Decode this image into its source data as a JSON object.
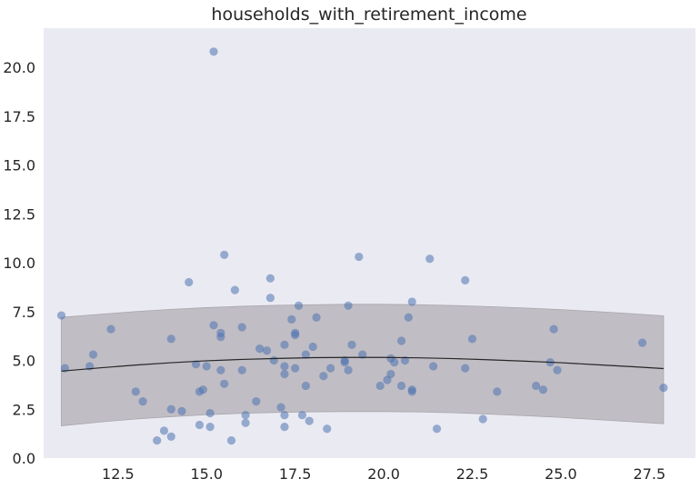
{
  "chart_data": {
    "type": "scatter",
    "title": "households_with_retirement_income",
    "xlabel": "",
    "ylabel": "",
    "xlim": [
      10.4,
      28.8
    ],
    "ylim": [
      0,
      22
    ],
    "x_ticks": [
      "12.5",
      "15.0",
      "17.5",
      "20.0",
      "22.5",
      "25.0",
      "27.5"
    ],
    "y_ticks": [
      "0.0",
      "2.5",
      "5.0",
      "7.5",
      "10.0",
      "12.5",
      "15.0",
      "17.5",
      "20.0"
    ],
    "grid": false,
    "background_color": "#eaeaf2",
    "point_color": "#4c72b0",
    "band_color": "#a9a5ab",
    "fit_line_color": "#262626",
    "points": [
      [
        10.9,
        7.3
      ],
      [
        11.0,
        4.6
      ],
      [
        11.7,
        4.7
      ],
      [
        11.8,
        5.3
      ],
      [
        12.3,
        6.6
      ],
      [
        13.0,
        3.4
      ],
      [
        13.2,
        2.9
      ],
      [
        13.6,
        0.9
      ],
      [
        13.8,
        1.4
      ],
      [
        14.0,
        1.1
      ],
      [
        14.0,
        2.5
      ],
      [
        14.0,
        6.1
      ],
      [
        14.3,
        2.4
      ],
      [
        14.5,
        9.0
      ],
      [
        14.7,
        4.8
      ],
      [
        14.8,
        3.4
      ],
      [
        14.8,
        1.7
      ],
      [
        14.9,
        3.5
      ],
      [
        15.0,
        4.7
      ],
      [
        15.1,
        1.6
      ],
      [
        15.1,
        2.3
      ],
      [
        15.2,
        6.8
      ],
      [
        15.2,
        20.8
      ],
      [
        15.4,
        6.4
      ],
      [
        15.4,
        6.2
      ],
      [
        15.4,
        4.5
      ],
      [
        15.5,
        10.4
      ],
      [
        15.5,
        3.8
      ],
      [
        15.7,
        0.9
      ],
      [
        15.8,
        8.6
      ],
      [
        16.0,
        4.5
      ],
      [
        16.0,
        6.7
      ],
      [
        16.1,
        2.2
      ],
      [
        16.1,
        1.8
      ],
      [
        16.4,
        2.9
      ],
      [
        16.5,
        5.6
      ],
      [
        16.7,
        5.5
      ],
      [
        16.8,
        9.2
      ],
      [
        16.8,
        8.2
      ],
      [
        16.9,
        5.0
      ],
      [
        17.1,
        2.6
      ],
      [
        17.2,
        5.8
      ],
      [
        17.2,
        4.7
      ],
      [
        17.2,
        4.3
      ],
      [
        17.2,
        2.2
      ],
      [
        17.2,
        1.6
      ],
      [
        17.4,
        7.1
      ],
      [
        17.5,
        6.4
      ],
      [
        17.5,
        6.3
      ],
      [
        17.5,
        4.6
      ],
      [
        17.6,
        7.8
      ],
      [
        17.7,
        2.2
      ],
      [
        17.8,
        5.3
      ],
      [
        17.8,
        3.7
      ],
      [
        17.9,
        1.9
      ],
      [
        18.0,
        5.7
      ],
      [
        18.1,
        7.2
      ],
      [
        18.3,
        4.2
      ],
      [
        18.4,
        1.5
      ],
      [
        18.5,
        4.6
      ],
      [
        18.9,
        5.0
      ],
      [
        18.9,
        4.9
      ],
      [
        19.0,
        7.8
      ],
      [
        19.0,
        4.5
      ],
      [
        19.1,
        5.8
      ],
      [
        19.3,
        10.3
      ],
      [
        19.4,
        5.3
      ],
      [
        19.9,
        3.7
      ],
      [
        20.1,
        4.0
      ],
      [
        20.2,
        4.3
      ],
      [
        20.2,
        5.1
      ],
      [
        20.3,
        4.9
      ],
      [
        20.5,
        6.0
      ],
      [
        20.5,
        3.7
      ],
      [
        20.6,
        5.0
      ],
      [
        20.7,
        7.2
      ],
      [
        20.8,
        8.0
      ],
      [
        20.8,
        3.5
      ],
      [
        20.8,
        3.4
      ],
      [
        21.3,
        10.2
      ],
      [
        21.4,
        4.7
      ],
      [
        21.5,
        1.5
      ],
      [
        22.3,
        9.1
      ],
      [
        22.3,
        4.6
      ],
      [
        22.5,
        6.1
      ],
      [
        22.8,
        2.0
      ],
      [
        23.2,
        3.4
      ],
      [
        24.3,
        3.7
      ],
      [
        24.5,
        3.5
      ],
      [
        24.7,
        4.9
      ],
      [
        24.8,
        6.6
      ],
      [
        24.9,
        4.5
      ],
      [
        27.3,
        5.9
      ],
      [
        27.9,
        3.6
      ]
    ],
    "fit": {
      "x": [
        10.9,
        12.0,
        13.0,
        14.0,
        15.0,
        16.0,
        17.0,
        18.0,
        19.0,
        20.0,
        21.0,
        22.0,
        23.0,
        24.0,
        25.0,
        26.0,
        27.0,
        27.9
      ],
      "y": [
        4.45,
        4.62,
        4.76,
        4.88,
        4.98,
        5.05,
        5.1,
        5.14,
        5.15,
        5.15,
        5.13,
        5.09,
        5.03,
        4.96,
        4.88,
        4.78,
        4.68,
        4.58
      ],
      "lower": [
        1.65,
        1.85,
        2.0,
        2.12,
        2.22,
        2.29,
        2.34,
        2.37,
        2.38,
        2.38,
        2.36,
        2.32,
        2.25,
        2.17,
        2.08,
        1.97,
        1.86,
        1.76
      ],
      "upper": [
        7.2,
        7.36,
        7.5,
        7.61,
        7.7,
        7.77,
        7.82,
        7.85,
        7.87,
        7.87,
        7.85,
        7.81,
        7.75,
        7.68,
        7.6,
        7.5,
        7.39,
        7.28
      ]
    }
  }
}
